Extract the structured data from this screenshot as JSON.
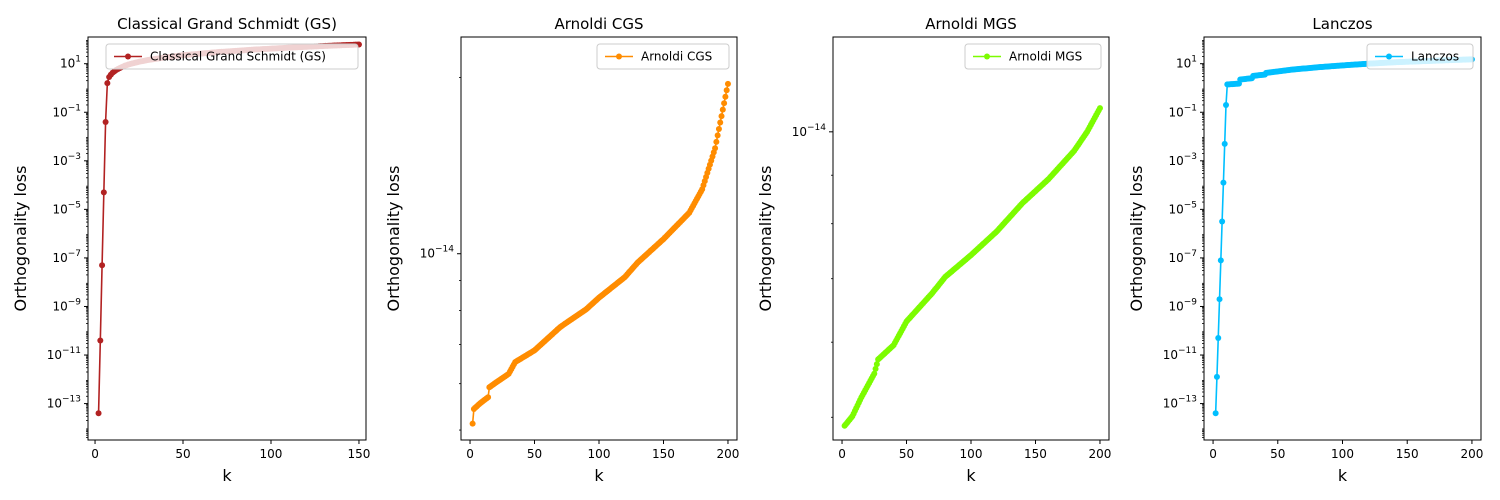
{
  "chart_data": [
    {
      "type": "line",
      "title": "Classical Grand Schmidt (GS)",
      "xlabel": "k",
      "ylabel": "Orthogonality loss",
      "yscale": "log",
      "xlim": [
        -4,
        154
      ],
      "ylim_log10": [
        -14.5,
        2.1
      ],
      "xticks": [
        0,
        50,
        100,
        150
      ],
      "yticks": [
        {
          "exp": -13,
          "label": "10",
          "sup": "−13"
        },
        {
          "exp": -11,
          "label": "10",
          "sup": "−11"
        },
        {
          "exp": -9,
          "label": "10",
          "sup": "−9"
        },
        {
          "exp": -7,
          "label": "10",
          "sup": "−7"
        },
        {
          "exp": -5,
          "label": "10",
          "sup": "−5"
        },
        {
          "exp": -3,
          "label": "10",
          "sup": "−3"
        },
        {
          "exp": -1,
          "label": "10",
          "sup": "−1"
        },
        {
          "exp": 1,
          "label": "10",
          "sup": "1"
        }
      ],
      "legend": "upper right",
      "grid": false,
      "series": [
        {
          "name": "Classical Grand Schmidt (GS)",
          "color": "#b22222",
          "x_range": [
            2,
            150
          ],
          "log10_points": [
            [
              2,
              -13.4
            ],
            [
              3,
              -10.4
            ],
            [
              4,
              -7.3
            ],
            [
              5,
              -4.3
            ],
            [
              6,
              -1.4
            ],
            [
              7,
              0.2
            ],
            [
              8,
              0.45
            ],
            [
              9,
              0.55
            ],
            [
              10,
              0.63
            ],
            [
              12,
              0.74
            ],
            [
              14,
              0.82
            ],
            [
              17,
              0.92
            ],
            [
              20,
              0.99
            ],
            [
              25,
              1.08
            ],
            [
              30,
              1.15
            ],
            [
              40,
              1.26
            ],
            [
              50,
              1.35
            ],
            [
              70,
              1.48
            ],
            [
              90,
              1.58
            ],
            [
              110,
              1.66
            ],
            [
              130,
              1.73
            ],
            [
              150,
              1.79
            ]
          ]
        }
      ]
    },
    {
      "type": "line",
      "title": "Arnoldi CGS",
      "xlabel": "k",
      "ylabel": "Orthogonality loss",
      "yscale": "log",
      "xlim": [
        -7,
        207
      ],
      "ylim_log10": [
        -14.318,
        -13.63
      ],
      "xticks": [
        0,
        50,
        100,
        150,
        200
      ],
      "yticks": [
        {
          "exp": -14,
          "label": "10",
          "sup": "−14"
        }
      ],
      "legend": "upper right",
      "grid": false,
      "series": [
        {
          "name": "Arnoldi CGS",
          "color": "#ff8c00",
          "x_range": [
            2,
            200
          ],
          "log10_points": [
            [
              2,
              -14.29
            ],
            [
              3,
              -14.265
            ],
            [
              8,
              -14.255
            ],
            [
              14,
              -14.245
            ],
            [
              15,
              -14.228
            ],
            [
              20,
              -14.22
            ],
            [
              30,
              -14.205
            ],
            [
              35,
              -14.185
            ],
            [
              50,
              -14.165
            ],
            [
              70,
              -14.125
            ],
            [
              90,
              -14.095
            ],
            [
              100,
              -14.075
            ],
            [
              120,
              -14.04
            ],
            [
              130,
              -14.015
            ],
            [
              150,
              -13.975
            ],
            [
              170,
              -13.93
            ],
            [
              180,
              -13.89
            ],
            [
              190,
              -13.82
            ],
            [
              200,
              -13.71
            ]
          ]
        }
      ]
    },
    {
      "type": "line",
      "title": "Arnoldi MGS",
      "xlabel": "k",
      "ylabel": "Orthogonality loss",
      "yscale": "log",
      "xlim": [
        -7,
        207
      ],
      "ylim_log10": [
        -14.325,
        -13.9
      ],
      "xticks": [
        0,
        50,
        100,
        150,
        200
      ],
      "yticks": [
        {
          "exp": -14,
          "label": "10",
          "sup": "−14"
        }
      ],
      "legend": "upper right",
      "grid": false,
      "series": [
        {
          "name": "Arnoldi MGS",
          "color": "#7cfc00",
          "x_range": [
            2,
            200
          ],
          "log10_points": [
            [
              2,
              -14.31
            ],
            [
              8,
              -14.3
            ],
            [
              15,
              -14.28
            ],
            [
              25,
              -14.255
            ],
            [
              28,
              -14.24
            ],
            [
              40,
              -14.225
            ],
            [
              50,
              -14.2
            ],
            [
              60,
              -14.185
            ],
            [
              70,
              -14.17
            ],
            [
              80,
              -14.153
            ],
            [
              100,
              -14.13
            ],
            [
              120,
              -14.105
            ],
            [
              140,
              -14.075
            ],
            [
              160,
              -14.05
            ],
            [
              180,
              -14.02
            ],
            [
              190,
              -14.0
            ],
            [
              200,
              -13.975
            ]
          ]
        }
      ]
    },
    {
      "type": "line",
      "title": "Lanczos",
      "xlabel": "k",
      "ylabel": "Orthogonality loss",
      "yscale": "log",
      "xlim": [
        -7,
        207
      ],
      "ylim_log10": [
        -14.5,
        2.1
      ],
      "xticks": [
        0,
        50,
        100,
        150,
        200
      ],
      "yticks": [
        {
          "exp": -13,
          "label": "10",
          "sup": "−13"
        },
        {
          "exp": -11,
          "label": "10",
          "sup": "−11"
        },
        {
          "exp": -9,
          "label": "10",
          "sup": "−9"
        },
        {
          "exp": -7,
          "label": "10",
          "sup": "−7"
        },
        {
          "exp": -5,
          "label": "10",
          "sup": "−5"
        },
        {
          "exp": -3,
          "label": "10",
          "sup": "−3"
        },
        {
          "exp": -1,
          "label": "10",
          "sup": "−1"
        },
        {
          "exp": 1,
          "label": "10",
          "sup": "1"
        }
      ],
      "legend": "upper right",
      "grid": false,
      "series": [
        {
          "name": "Lanczos",
          "color": "#00bfff",
          "x_range": [
            2,
            200
          ],
          "log10_points": [
            [
              2,
              -13.4
            ],
            [
              3,
              -11.9
            ],
            [
              4,
              -10.3
            ],
            [
              5,
              -8.7
            ],
            [
              6,
              -7.1
            ],
            [
              7,
              -5.5
            ],
            [
              8,
              -3.9
            ],
            [
              9,
              -2.3
            ],
            [
              10,
              -0.7
            ],
            [
              11,
              0.15
            ],
            [
              12,
              0.15
            ],
            [
              20,
              0.18
            ],
            [
              21,
              0.35
            ],
            [
              30,
              0.4
            ],
            [
              31,
              0.5
            ],
            [
              40,
              0.55
            ],
            [
              41,
              0.62
            ],
            [
              60,
              0.75
            ],
            [
              80,
              0.85
            ],
            [
              100,
              0.93
            ],
            [
              120,
              1.0
            ],
            [
              140,
              1.06
            ],
            [
              160,
              1.1
            ],
            [
              180,
              1.14
            ],
            [
              200,
              1.18
            ]
          ]
        }
      ]
    }
  ]
}
